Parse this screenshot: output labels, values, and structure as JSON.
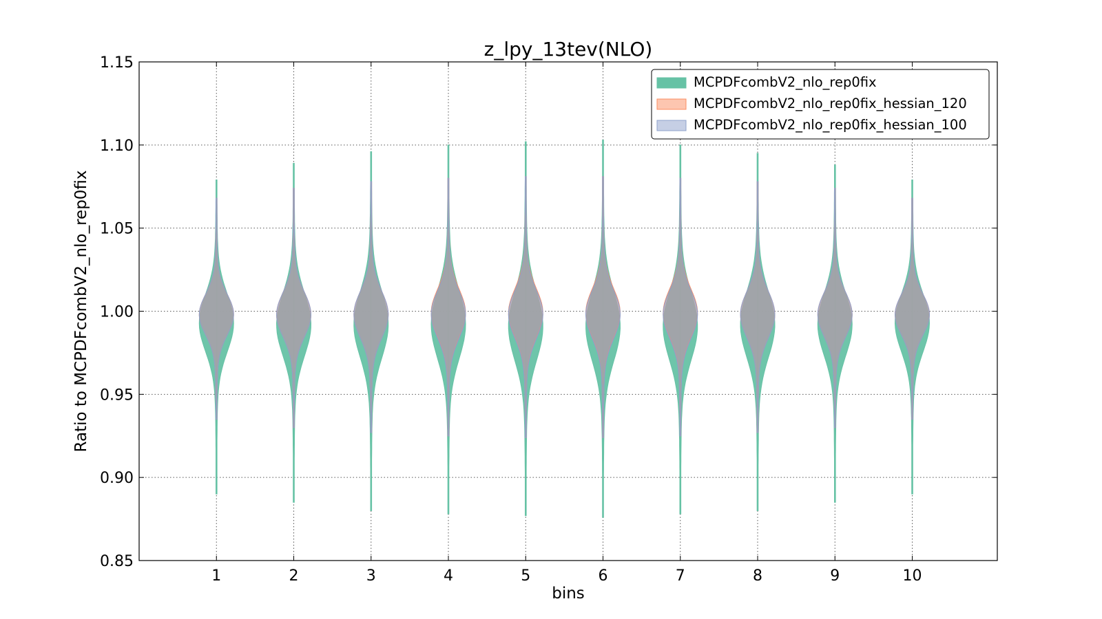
{
  "chart_data": {
    "type": "violin",
    "title": "z_lpy_13tev(NLO)",
    "xlabel": "bins",
    "ylabel": "Ratio to MCPDFcombV2_nlo_rep0fix",
    "ylim": [
      0.85,
      1.15
    ],
    "xlim": [
      0,
      11.1
    ],
    "yticks": [
      "0.85",
      "0.90",
      "0.95",
      "1.00",
      "1.05",
      "1.10",
      "1.15"
    ],
    "categories": [
      "1",
      "2",
      "3",
      "4",
      "5",
      "6",
      "7",
      "8",
      "9",
      "10"
    ],
    "grid": true,
    "legend_position": "top-right",
    "series": [
      {
        "name": "MCPDFcombV2_nlo_rep0fix",
        "color": "#66c2a5",
        "min": [
          0.89,
          0.885,
          0.88,
          0.878,
          0.877,
          0.876,
          0.878,
          0.88,
          0.885,
          0.89
        ],
        "max": [
          1.079,
          1.089,
          1.096,
          1.1,
          1.102,
          1.103,
          1.1,
          1.095,
          1.088,
          1.079
        ],
        "center": [
          0.993,
          0.992,
          0.992,
          0.992,
          0.991,
          0.991,
          0.991,
          0.992,
          0.992,
          0.993
        ]
      },
      {
        "name": "MCPDFcombV2_nlo_rep0fix_hessian_120",
        "color": "#fc8d62",
        "min": [
          0.935,
          0.93,
          0.927,
          0.925,
          0.924,
          0.924,
          0.925,
          0.927,
          0.93,
          0.935
        ],
        "max": [
          1.068,
          1.074,
          1.078,
          1.08,
          1.081,
          1.081,
          1.08,
          1.078,
          1.074,
          1.068
        ],
        "center": [
          0.998,
          0.998,
          0.998,
          0.999,
          0.999,
          0.999,
          0.999,
          0.998,
          0.998,
          0.998
        ]
      },
      {
        "name": "MCPDFcombV2_nlo_rep0fix_hessian_100",
        "color": "#8da0cb",
        "min": [
          0.935,
          0.93,
          0.927,
          0.925,
          0.924,
          0.924,
          0.925,
          0.927,
          0.93,
          0.935
        ],
        "max": [
          1.068,
          1.074,
          1.078,
          1.08,
          1.081,
          1.081,
          1.08,
          1.078,
          1.074,
          1.068
        ],
        "center": [
          0.998,
          0.998,
          0.998,
          0.998,
          0.998,
          0.998,
          0.998,
          0.998,
          0.998,
          0.998
        ]
      }
    ]
  }
}
